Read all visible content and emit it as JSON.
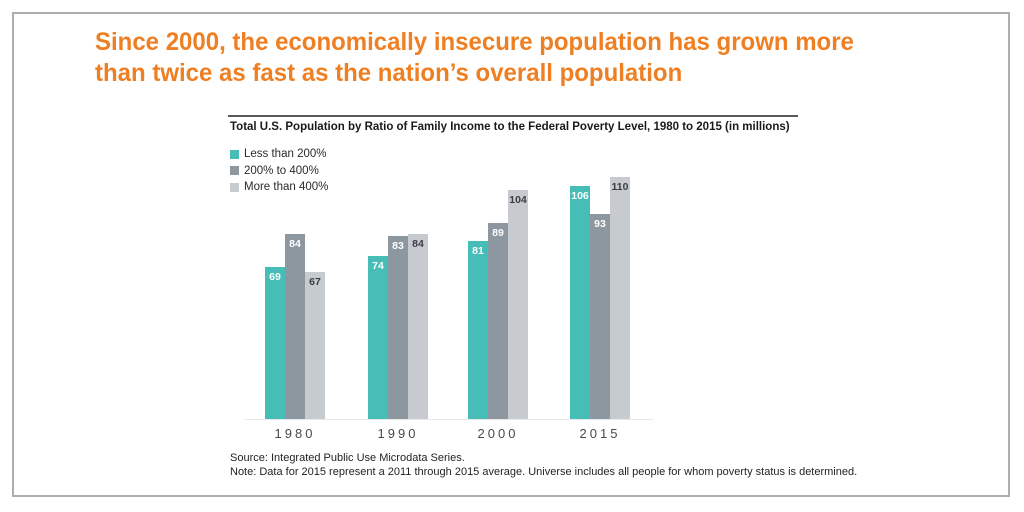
{
  "headline": {
    "lines": [
      "Since 2000, the economically insecure population has grown more",
      "than twice as fast as the nation’s overall population"
    ],
    "color": "#EE7F22"
  },
  "chart": {
    "title": "Total U.S. Population by Ratio of Family Income to the Federal Poverty Level, 1980 to 2015 (in millions)",
    "source": "Source: Integrated Public Use Microdata Series.",
    "note": "Note: Data for 2015 represent a 2011 through 2015 average. Universe includes all people for whom poverty status is determined."
  },
  "chart_data": {
    "type": "bar",
    "title": "Total U.S. Population by Ratio of Family Income to the Federal Poverty Level, 1980 to 2015 (in millions)",
    "categories": [
      "1980",
      "1990",
      "2000",
      "2015"
    ],
    "series": [
      {
        "name": "Less than 200%",
        "color": "#46BDB7",
        "label_color": "#ffffff",
        "values": [
          69,
          74,
          81,
          106
        ]
      },
      {
        "name": "200% to 400%",
        "color": "#8D97A0",
        "label_color": "#ffffff",
        "values": [
          84,
          83,
          89,
          93
        ]
      },
      {
        "name": "More than 400%",
        "color": "#C7CBCF",
        "label_color": "#3a3e44",
        "values": [
          67,
          84,
          104,
          110
        ]
      }
    ],
    "ylim": [
      0,
      110
    ],
    "grid": false,
    "legend_position": "top-left",
    "data_labels": true,
    "xlabel": "",
    "ylabel": ""
  }
}
